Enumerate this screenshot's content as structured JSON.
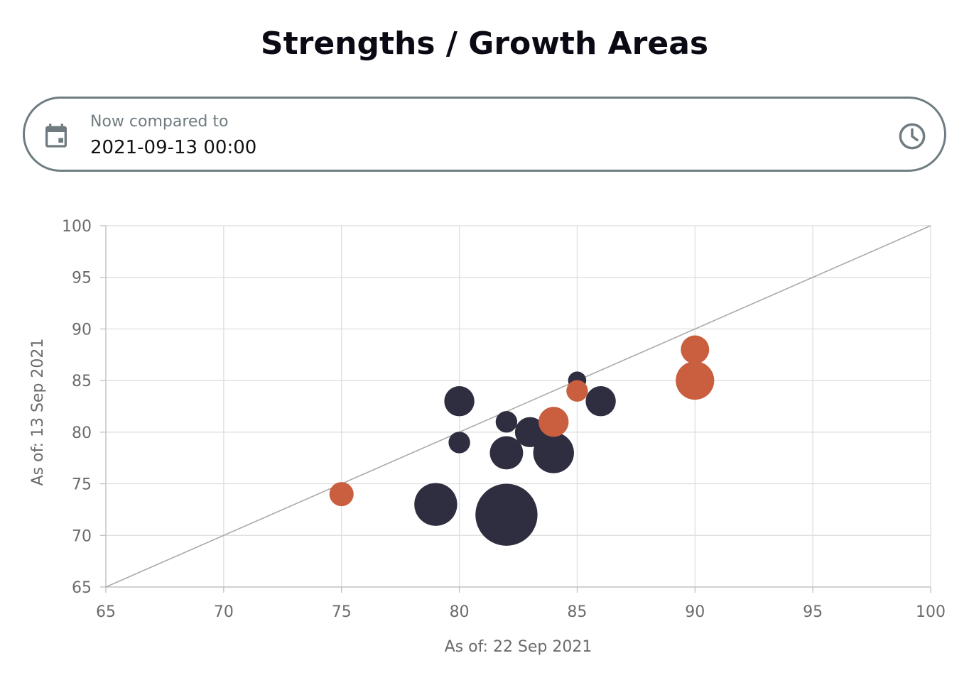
{
  "title": "Strengths / Growth Areas",
  "date_picker": {
    "label": "Now compared to",
    "value": "2021-09-13 00:00",
    "leading_icon": "calendar-icon",
    "trailing_icon": "clock-icon"
  },
  "colors": {
    "dark": "#2e2e40",
    "orange": "#c95f3e",
    "grid": "#dcdcdc",
    "diagonal": "#aaaaaa",
    "picker_border": "#6f7d82"
  },
  "chart_data": {
    "type": "scatter",
    "subtype": "bubble",
    "xlabel": "As of: 22 Sep 2021",
    "ylabel": "As of: 13 Sep 2021",
    "xlim": [
      65,
      100
    ],
    "ylim": [
      65,
      100
    ],
    "xticks": [
      "65",
      "70",
      "75",
      "80",
      "85",
      "90",
      "95",
      "100"
    ],
    "yticks": [
      "100",
      "95",
      "90",
      "85",
      "80",
      "75",
      "70",
      "65"
    ],
    "grid": true,
    "reference_line": {
      "from": [
        65,
        65
      ],
      "to": [
        100,
        100
      ]
    },
    "series": [
      {
        "color": "#2e2e40",
        "points": [
          {
            "x": 80,
            "y": 83,
            "size": 3
          },
          {
            "x": 80,
            "y": 79,
            "size": 1
          },
          {
            "x": 82,
            "y": 81,
            "size": 1
          },
          {
            "x": 83,
            "y": 80,
            "size": 3
          },
          {
            "x": 82,
            "y": 78,
            "size": 4
          },
          {
            "x": 84,
            "y": 78,
            "size": 7
          },
          {
            "x": 85,
            "y": 85,
            "size": 0.5
          },
          {
            "x": 86,
            "y": 83,
            "size": 3
          },
          {
            "x": 79,
            "y": 73,
            "size": 8
          },
          {
            "x": 82,
            "y": 72,
            "size": 20
          }
        ]
      },
      {
        "color": "#c95f3e",
        "points": [
          {
            "x": 75,
            "y": 74,
            "size": 1.5
          },
          {
            "x": 85,
            "y": 84,
            "size": 1
          },
          {
            "x": 84,
            "y": 81,
            "size": 3
          },
          {
            "x": 90,
            "y": 88,
            "size": 2.5
          },
          {
            "x": 90,
            "y": 85,
            "size": 6
          }
        ]
      }
    ]
  }
}
